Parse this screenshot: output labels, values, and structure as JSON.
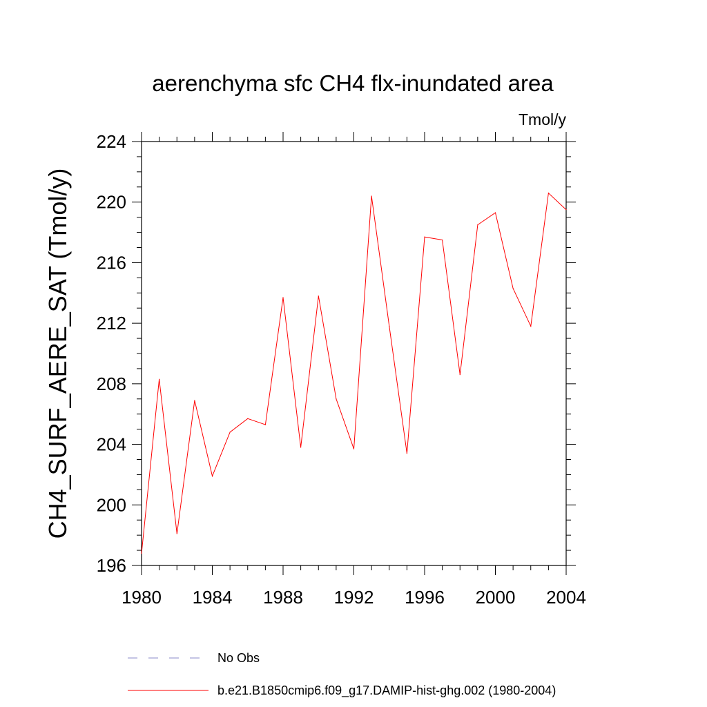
{
  "chart_data": {
    "type": "line",
    "title": "aerenchyma sfc CH4 flx-inundated area",
    "units": "Tmol/y",
    "ylabel": "CH4_SURF_AERE_SAT  (Tmol/y)",
    "xlabel": "",
    "xlim": [
      1980,
      2004
    ],
    "ylim": [
      196,
      224
    ],
    "xticks": [
      1980,
      1984,
      1988,
      1992,
      1996,
      2000,
      2004
    ],
    "yticks": [
      196,
      200,
      204,
      208,
      212,
      216,
      220,
      224
    ],
    "grid": false,
    "legend_position": "bottom",
    "series": [
      {
        "name": "b.e21.B1850cmip6.f09_g17.DAMIP-hist-ghg.002 (1980-2004)",
        "color": "#ff0000",
        "x": [
          1980,
          1981,
          1982,
          1983,
          1984,
          1985,
          1986,
          1987,
          1988,
          1989,
          1990,
          1991,
          1992,
          1993,
          1994,
          1995,
          1996,
          1997,
          1998,
          1999,
          2000,
          2001,
          2002,
          2003,
          2004
        ],
        "y": [
          196.8,
          208.3,
          198.1,
          206.9,
          201.9,
          204.8,
          205.7,
          205.3,
          213.7,
          203.8,
          213.8,
          207.0,
          203.7,
          220.4,
          211.8,
          203.4,
          217.7,
          217.5,
          208.6,
          218.5,
          219.3,
          214.3,
          211.8,
          220.6,
          219.5
        ]
      }
    ],
    "legend": [
      {
        "label": "No Obs",
        "color": "#8a8ac8",
        "style": "dashed"
      },
      {
        "label": "b.e21.B1850cmip6.f09_g17.DAMIP-hist-ghg.002 (1980-2004)",
        "color": "#ff0000",
        "style": "solid"
      }
    ]
  }
}
